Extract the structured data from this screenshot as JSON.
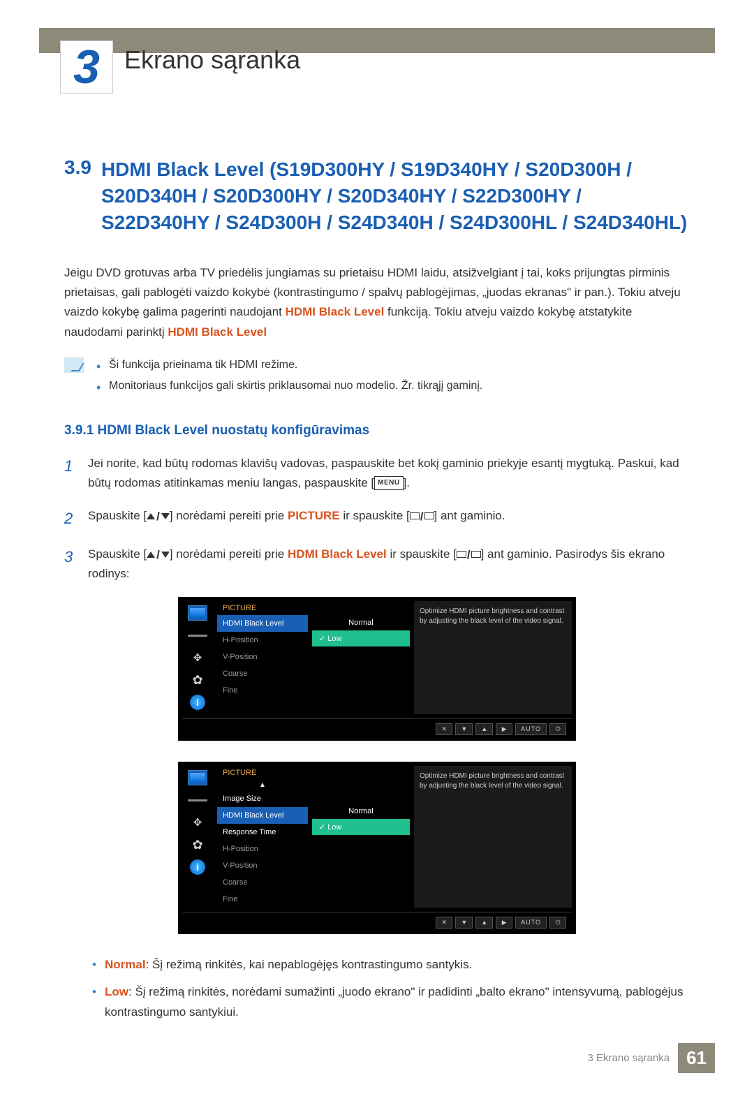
{
  "chapter": {
    "number": "3",
    "title": "Ekrano sąranka"
  },
  "section": {
    "number": "3.9",
    "title": "HDMI Black Level (S19D300HY / S19D340HY / S20D300H / S20D340H / S20D300HY / S20D340HY / S22D300HY / S22D340HY / S24D300H / S24D340H / S24D300HL / S24D340HL)"
  },
  "intro": {
    "p1": "Jeigu DVD grotuvas arba TV priedėlis jungiamas su prietaisu HDMI laidu, atsižvelgiant į tai, koks prijungtas pirminis prietaisas, gali pablogėti vaizdo kokybė (kontrastingumo / spalvų pablogėjimas, „juodas ekranas\" ir pan.). Tokiu atveju vaizdo kokybę galima pagerinti naudojant ",
    "hl1": "HDMI Black Level",
    "p2": " funkciją. Tokiu atveju vaizdo kokybę atstatykite naudodami parinktį ",
    "hl2": "HDMI Black Level"
  },
  "notes": {
    "n1a": "Ši funkcija prieinama tik ",
    "n1_hl": "HDMI",
    "n1b": " režime.",
    "n2": "Monitoriaus funkcijos gali skirtis priklausomai nuo modelio. Žr. tikrąjį gaminį."
  },
  "subsection": "3.9.1  HDMI Black Level nuostatų konfigūravimas",
  "steps": {
    "s1": "Jei norite, kad būtų rodomas klavišų vadovas, paspauskite bet kokį gaminio priekyje esantį mygtuką. Paskui, kad būtų rodomas atitinkamas meniu langas, paspauskite [",
    "s1b": "].",
    "s2a": "Spauskite [",
    "s2b": "] norėdami pereiti prie ",
    "s2_hl": "PICTURE",
    "s2c": " ir spauskite [",
    "s2d": "] ant gaminio.",
    "s3a": "Spauskite [",
    "s3b": "] norėdami pereiti prie ",
    "s3_hl": "HDMI Black Level",
    "s3c": " ir spauskite [",
    "s3d": "] ant gaminio. Pasirodys šis ekrano rodinys:",
    "menu_label": "MENU"
  },
  "osd1": {
    "category": "PICTURE",
    "items": [
      "HDMI Black Level",
      "H-Position",
      "V-Position",
      "Coarse",
      "Fine"
    ],
    "active_index": 0,
    "options": [
      "Normal",
      "Low"
    ],
    "selected_index": 1,
    "description": "Optimize HDMI picture brightness and contrast by adjusting the black level of the video signal.",
    "buttons": [
      "✕",
      "▼",
      "▲",
      "▶",
      "AUTO",
      "⏻"
    ]
  },
  "osd2": {
    "category": "PICTURE",
    "items": [
      "Image Size",
      "HDMI Black Level",
      "Response Time",
      "H-Position",
      "V-Position",
      "Coarse",
      "Fine"
    ],
    "active_index": 1,
    "white_indices": [
      0,
      2
    ],
    "options": [
      "Normal",
      "Low"
    ],
    "selected_index": 1,
    "description": "Optimize HDMI picture brightness and contrast by adjusting the black level of the video signal.",
    "buttons": [
      "✕",
      "▼",
      "▲",
      "▶",
      "AUTO",
      "⏻"
    ]
  },
  "defs": {
    "d1_hl": "Normal",
    "d1": ": Šį režimą rinkitės, kai nepablogėjęs kontrastingumo santykis.",
    "d2_hl": "Low",
    "d2": ": Šį režimą rinkitės, norėdami sumažinti „juodo ekrano\" ir padidinti „balto ekrano\" intensyvumą, pablogėjus kontrastingumo santykiui."
  },
  "footer": {
    "text": "3 Ekrano sąranka",
    "page": "61"
  }
}
